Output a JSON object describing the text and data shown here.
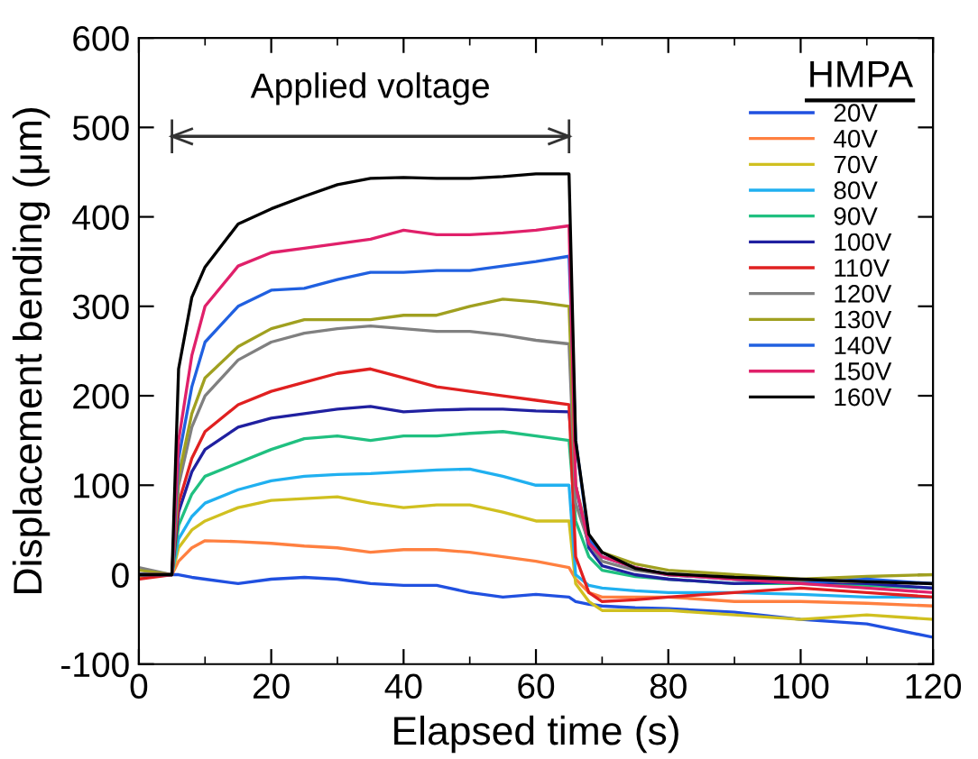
{
  "chart_data": {
    "type": "line",
    "xlabel": "Elapsed time (s)",
    "ylabel": "Displacement bending (μm)",
    "xlim": [
      0,
      120
    ],
    "xticks": [
      0,
      20,
      40,
      60,
      80,
      100,
      120
    ],
    "ylim": [
      -100,
      600
    ],
    "yticks": [
      -100,
      0,
      100,
      200,
      300,
      400,
      500,
      600
    ],
    "grid": false,
    "legend": "right",
    "marker": "none",
    "line_style": "solid",
    "annotations": [
      "HMPA",
      "Applied voltage"
    ],
    "x": [
      0,
      5,
      6,
      8,
      10,
      15,
      20,
      25,
      30,
      35,
      40,
      45,
      50,
      55,
      60,
      65,
      66,
      68,
      70,
      75,
      80,
      90,
      100,
      110,
      120
    ],
    "series": [
      {
        "name": "20V",
        "color": "#2050e0",
        "values": [
          0,
          0,
          0,
          -3,
          -5,
          -10,
          -5,
          -3,
          -5,
          -10,
          -12,
          -12,
          -20,
          -25,
          -22,
          -25,
          -30,
          -33,
          -35,
          -37,
          -38,
          -42,
          -50,
          -55,
          -70
        ]
      },
      {
        "name": "40V",
        "color": "#ff8040",
        "values": [
          -3,
          0,
          15,
          30,
          38,
          37,
          35,
          32,
          30,
          25,
          28,
          28,
          25,
          20,
          15,
          8,
          -5,
          -20,
          -25,
          -25,
          -25,
          -30,
          -30,
          -32,
          -35
        ]
      },
      {
        "name": "70V",
        "color": "#d0c020",
        "values": [
          -2,
          0,
          30,
          50,
          60,
          75,
          83,
          85,
          87,
          80,
          75,
          78,
          78,
          70,
          60,
          60,
          -10,
          -30,
          -40,
          -40,
          -40,
          -45,
          -50,
          -45,
          -50
        ]
      },
      {
        "name": "80V",
        "color": "#20b0f0",
        "values": [
          0,
          0,
          40,
          65,
          80,
          95,
          105,
          110,
          112,
          113,
          115,
          117,
          118,
          110,
          100,
          100,
          0,
          -12,
          -15,
          -18,
          -20,
          -20,
          -22,
          -25,
          -25
        ]
      },
      {
        "name": "90V",
        "color": "#20c080",
        "values": [
          0,
          0,
          55,
          90,
          110,
          125,
          140,
          152,
          155,
          150,
          155,
          155,
          158,
          160,
          155,
          150,
          60,
          20,
          5,
          -2,
          -5,
          -10,
          -10,
          -12,
          -15
        ]
      },
      {
        "name": "100V",
        "color": "#2020a0",
        "values": [
          0,
          0,
          70,
          115,
          140,
          165,
          175,
          180,
          185,
          188,
          182,
          184,
          185,
          185,
          183,
          182,
          100,
          30,
          10,
          0,
          -5,
          -10,
          -8,
          -10,
          -15
        ]
      },
      {
        "name": "110V",
        "color": "#e02020",
        "values": [
          -5,
          0,
          80,
          130,
          160,
          190,
          205,
          215,
          225,
          230,
          220,
          210,
          205,
          200,
          195,
          190,
          20,
          -20,
          -30,
          -28,
          -25,
          -20,
          -15,
          -20,
          -25
        ]
      },
      {
        "name": "120V",
        "color": "#808080",
        "values": [
          8,
          0,
          100,
          165,
          200,
          240,
          260,
          270,
          275,
          278,
          275,
          272,
          272,
          268,
          262,
          258,
          80,
          35,
          15,
          5,
          0,
          -5,
          -8,
          -8,
          -10
        ]
      },
      {
        "name": "130V",
        "color": "#a0a020",
        "values": [
          5,
          0,
          110,
          180,
          220,
          255,
          275,
          285,
          285,
          285,
          290,
          290,
          300,
          308,
          305,
          300,
          100,
          40,
          25,
          12,
          5,
          0,
          -5,
          -2,
          0
        ]
      },
      {
        "name": "140V",
        "color": "#2060e0",
        "values": [
          0,
          0,
          130,
          210,
          260,
          300,
          318,
          320,
          330,
          338,
          338,
          340,
          340,
          345,
          350,
          356,
          150,
          40,
          20,
          8,
          0,
          -5,
          -10,
          -5,
          -10
        ]
      },
      {
        "name": "150V",
        "color": "#e0206a",
        "values": [
          0,
          0,
          150,
          245,
          300,
          345,
          360,
          365,
          370,
          375,
          385,
          380,
          380,
          382,
          385,
          390,
          100,
          35,
          20,
          8,
          0,
          -5,
          -10,
          -15,
          -20
        ]
      },
      {
        "name": "160V",
        "color": "#000000",
        "values": [
          0,
          0,
          230,
          310,
          344,
          392,
          409,
          423,
          436,
          443,
          444,
          443,
          443,
          445,
          448,
          448,
          150,
          45,
          25,
          7,
          1,
          -3,
          -5,
          -8,
          -10
        ]
      },
      {
        "color": "#333333",
        "x": [
          5,
          65
        ],
        "values": [
          490,
          490
        ]
      }
    ]
  }
}
